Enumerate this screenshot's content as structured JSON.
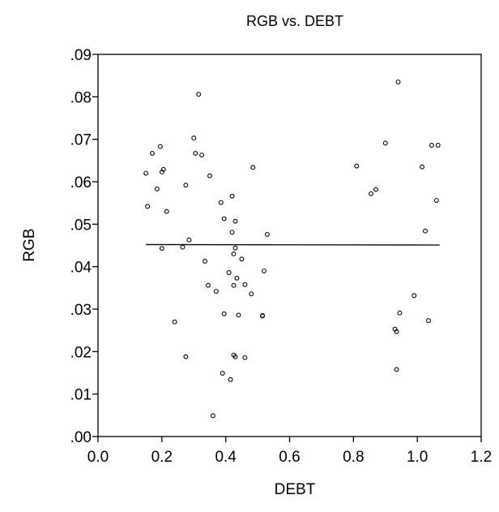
{
  "chart_data": {
    "type": "scatter",
    "title": "RGB vs. DEBT",
    "xlabel": "DEBT",
    "ylabel": "RGB",
    "xlim": [
      0.0,
      1.2
    ],
    "ylim": [
      0.0,
      0.09
    ],
    "x_ticks": [
      0.0,
      0.2,
      0.4,
      0.6,
      0.8,
      1.0,
      1.2
    ],
    "x_tick_labels": [
      "0.0",
      "0.2",
      "0.4",
      "0.6",
      "0.8",
      "1.0",
      "1.2"
    ],
    "y_ticks": [
      0.0,
      0.01,
      0.02,
      0.03,
      0.04,
      0.05,
      0.06,
      0.07,
      0.08,
      0.09
    ],
    "y_tick_labels": [
      ".00",
      ".01",
      ".02",
      ".03",
      ".04",
      ".05",
      ".06",
      ".07",
      ".08",
      ".09"
    ],
    "grid": false,
    "legend": "none",
    "marker": "hollow-circle",
    "colors": {
      "marker": "#000000",
      "line": "#000000",
      "axis": "#000000"
    },
    "points": [
      [
        0.15,
        0.062
      ],
      [
        0.155,
        0.0542
      ],
      [
        0.17,
        0.0667
      ],
      [
        0.185,
        0.0583
      ],
      [
        0.195,
        0.0683
      ],
      [
        0.2,
        0.0623
      ],
      [
        0.205,
        0.0629
      ],
      [
        0.2,
        0.0443
      ],
      [
        0.215,
        0.053
      ],
      [
        0.24,
        0.027
      ],
      [
        0.265,
        0.0446
      ],
      [
        0.275,
        0.0592
      ],
      [
        0.275,
        0.0188
      ],
      [
        0.285,
        0.0463
      ],
      [
        0.3,
        0.0703
      ],
      [
        0.305,
        0.0667
      ],
      [
        0.315,
        0.0806
      ],
      [
        0.325,
        0.0663
      ],
      [
        0.335,
        0.0413
      ],
      [
        0.345,
        0.0356
      ],
      [
        0.35,
        0.0614
      ],
      [
        0.36,
        0.0049
      ],
      [
        0.37,
        0.0342
      ],
      [
        0.385,
        0.0551
      ],
      [
        0.39,
        0.0149
      ],
      [
        0.395,
        0.0289
      ],
      [
        0.395,
        0.0513
      ],
      [
        0.41,
        0.0386
      ],
      [
        0.415,
        0.0134
      ],
      [
        0.42,
        0.0566
      ],
      [
        0.42,
        0.0481
      ],
      [
        0.425,
        0.043
      ],
      [
        0.425,
        0.0356
      ],
      [
        0.425,
        0.0192
      ],
      [
        0.43,
        0.0188
      ],
      [
        0.43,
        0.0507
      ],
      [
        0.43,
        0.0444
      ],
      [
        0.435,
        0.0373
      ],
      [
        0.44,
        0.0286
      ],
      [
        0.45,
        0.0418
      ],
      [
        0.46,
        0.0358
      ],
      [
        0.46,
        0.0186
      ],
      [
        0.48,
        0.0336
      ],
      [
        0.485,
        0.0634
      ],
      [
        0.515,
        0.0285
      ],
      [
        0.515,
        0.0284
      ],
      [
        0.52,
        0.039
      ],
      [
        0.53,
        0.0476
      ],
      [
        0.81,
        0.0637
      ],
      [
        0.855,
        0.0572
      ],
      [
        0.87,
        0.0582
      ],
      [
        0.9,
        0.0691
      ],
      [
        0.93,
        0.0253
      ],
      [
        0.935,
        0.0247
      ],
      [
        0.935,
        0.0158
      ],
      [
        0.94,
        0.0835
      ],
      [
        0.945,
        0.0291
      ],
      [
        0.99,
        0.0332
      ],
      [
        1.015,
        0.0635
      ],
      [
        1.025,
        0.0484
      ],
      [
        1.035,
        0.0273
      ],
      [
        1.045,
        0.0686
      ],
      [
        1.06,
        0.0556
      ],
      [
        1.065,
        0.0686
      ]
    ],
    "fit_line": {
      "x": [
        0.15,
        1.07
      ],
      "y": [
        0.0452,
        0.0451
      ]
    }
  }
}
